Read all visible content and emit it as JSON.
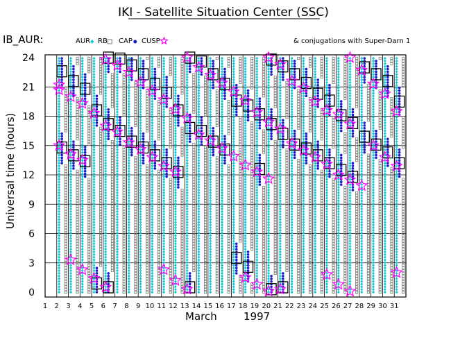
{
  "colors": {
    "aur": "#19c8d8",
    "rb": "#b8b8b8",
    "cap": "#7a7a7a",
    "cusp": "#1c1ccc",
    "conj": "#ff00ff",
    "frame": "#000000"
  },
  "header": {
    "title": "IKI - Satellite Situation Center (SSC)",
    "satellite": "IB_AUR:",
    "conjugation_note": "& conjugations with Super-Darn 1"
  },
  "legend": {
    "items": [
      {
        "key": "aur",
        "label": "AUR",
        "icon": "aur-diamond-icon"
      },
      {
        "key": "rb",
        "label": "RB",
        "icon": "rb-square-icon"
      },
      {
        "key": "cap",
        "label": "CAP",
        "icon": "cap-dot-icon"
      },
      {
        "key": "cusp",
        "label": "CUSP",
        "icon": "cusp-star-icon"
      }
    ]
  },
  "chart_data": {
    "type": "scatter",
    "title": "IKI - Satellite Situation Center (SSC)",
    "ylabel": "Universal time (hours)",
    "xlabel_month": "March",
    "xlabel_year": "1997",
    "ylim": [
      0,
      24
    ],
    "xlim": [
      1,
      31
    ],
    "yticks": [
      "24",
      "21",
      "18",
      "15",
      "12",
      "9",
      "6",
      "3",
      "0"
    ],
    "xticks": [
      "1",
      "2",
      "3",
      "4",
      "5",
      "6",
      "7",
      "8",
      "9",
      "10",
      "11",
      "12",
      "13",
      "14",
      "15",
      "16",
      "17",
      "18",
      "19",
      "20",
      "21",
      "22",
      "23",
      "24",
      "25",
      "26",
      "27",
      "28",
      "29",
      "30",
      "31"
    ],
    "cusp_passes": [
      {
        "day": 2,
        "ut": [
          14.8,
          22.6
        ]
      },
      {
        "day": 3,
        "ut": [
          14.0,
          21.6
        ]
      },
      {
        "day": 4,
        "ut": [
          13.4,
          20.8
        ]
      },
      {
        "day": 5,
        "ut": [
          0.9,
          18.6
        ]
      },
      {
        "day": 6,
        "ut": [
          0.5,
          17.2,
          24.0
        ]
      },
      {
        "day": 7,
        "ut": [
          16.5,
          23.9
        ]
      },
      {
        "day": 8,
        "ut": [
          15.4,
          23.2
        ]
      },
      {
        "day": 9,
        "ut": [
          14.8,
          22.3
        ]
      },
      {
        "day": 10,
        "ut": [
          14.0,
          21.3
        ]
      },
      {
        "day": 11,
        "ut": [
          13.2,
          20.4
        ]
      },
      {
        "day": 12,
        "ut": [
          12.3,
          18.6
        ]
      },
      {
        "day": 13,
        "ut": [
          0.5,
          16.8,
          24.0
        ]
      },
      {
        "day": 14,
        "ut": [
          16.5,
          23.6
        ]
      },
      {
        "day": 15,
        "ut": [
          15.4,
          22.3
        ]
      },
      {
        "day": 16,
        "ut": [
          14.6,
          21.3
        ]
      },
      {
        "day": 17,
        "ut": [
          3.5,
          19.6
        ]
      },
      {
        "day": 18,
        "ut": [
          2.6,
          19.1
        ]
      },
      {
        "day": 19,
        "ut": [
          12.6,
          18.2
        ]
      },
      {
        "day": 20,
        "ut": [
          0.3,
          17.2,
          23.8
        ]
      },
      {
        "day": 21,
        "ut": [
          0.5,
          16.2,
          23.1
        ]
      },
      {
        "day": 22,
        "ut": [
          15.1,
          22.3
        ]
      },
      {
        "day": 23,
        "ut": [
          14.7,
          21.4
        ]
      },
      {
        "day": 24,
        "ut": [
          14.0,
          20.3
        ]
      },
      {
        "day": 25,
        "ut": [
          13.2,
          19.6
        ]
      },
      {
        "day": 26,
        "ut": [
          12.5,
          18.1
        ]
      },
      {
        "day": 27,
        "ut": [
          11.8,
          17.3
        ]
      },
      {
        "day": 28,
        "ut": [
          15.9,
          23.0
        ]
      },
      {
        "day": 29,
        "ut": [
          15.1,
          22.3
        ]
      },
      {
        "day": 30,
        "ut": [
          14.3,
          21.6
        ]
      },
      {
        "day": 31,
        "ut": [
          13.2,
          19.5
        ]
      }
    ],
    "superdarn_conjugations": [
      {
        "day": 2,
        "ut": [
          15.0,
          20.7,
          21.2
        ]
      },
      {
        "day": 3,
        "ut": [
          3.3,
          14.1,
          20.0
        ]
      },
      {
        "day": 4,
        "ut": [
          2.3,
          13.5,
          19.3
        ]
      },
      {
        "day": 5,
        "ut": [
          1.4,
          18.3
        ]
      },
      {
        "day": 6,
        "ut": [
          0.5,
          17.0,
          23.8
        ]
      },
      {
        "day": 7,
        "ut": [
          16.4,
          23.2
        ]
      },
      {
        "day": 8,
        "ut": [
          15.3,
          22.5
        ]
      },
      {
        "day": 9,
        "ut": [
          14.6,
          21.5
        ]
      },
      {
        "day": 10,
        "ut": [
          13.8,
          20.6
        ]
      },
      {
        "day": 11,
        "ut": [
          2.3,
          12.9,
          19.7
        ]
      },
      {
        "day": 12,
        "ut": [
          1.2,
          12.3,
          18.7
        ]
      },
      {
        "day": 13,
        "ut": [
          0.3,
          17.8,
          24.0
        ]
      },
      {
        "day": 14,
        "ut": [
          16.1,
          23.0
        ]
      },
      {
        "day": 15,
        "ut": [
          15.5,
          22.2
        ]
      },
      {
        "day": 16,
        "ut": [
          14.7,
          21.4
        ]
      },
      {
        "day": 17,
        "ut": [
          13.9,
          20.5
        ]
      },
      {
        "day": 18,
        "ut": [
          1.5,
          13.0,
          19.6
        ]
      },
      {
        "day": 19,
        "ut": [
          0.8,
          12.3,
          18.4
        ]
      },
      {
        "day": 20,
        "ut": [
          0.1,
          11.6,
          17.4,
          24.0
        ]
      },
      {
        "day": 21,
        "ut": [
          0.3,
          16.7,
          23.3
        ]
      },
      {
        "day": 22,
        "ut": [
          15.2,
          21.6
        ]
      },
      {
        "day": 23,
        "ut": [
          14.5,
          20.9
        ]
      },
      {
        "day": 24,
        "ut": [
          13.8,
          19.5
        ]
      },
      {
        "day": 25,
        "ut": [
          1.8,
          13.1,
          18.6
        ]
      },
      {
        "day": 26,
        "ut": [
          0.8,
          12.0,
          18.2
        ]
      },
      {
        "day": 27,
        "ut": [
          0.1,
          11.5,
          17.2,
          24.0
        ]
      },
      {
        "day": 28,
        "ut": [
          10.9,
          22.7
        ]
      },
      {
        "day": 29,
        "ut": [
          15.0,
          21.3
        ]
      },
      {
        "day": 30,
        "ut": [
          13.8,
          20.3
        ]
      },
      {
        "day": 31,
        "ut": [
          2.0,
          12.9,
          18.5
        ]
      }
    ]
  }
}
